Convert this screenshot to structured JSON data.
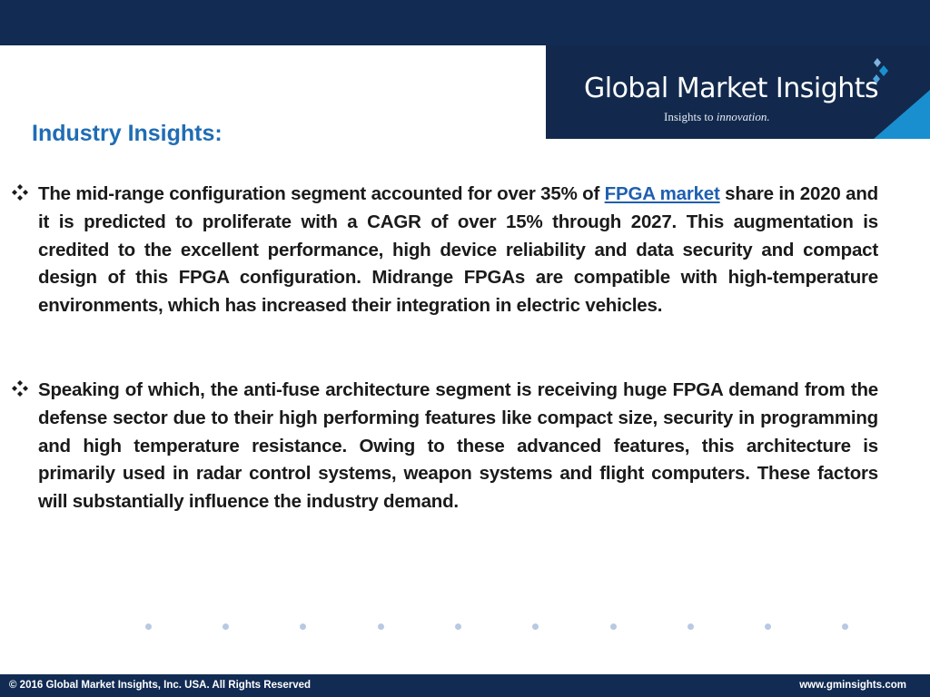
{
  "logo": {
    "name": "Global Market Insights",
    "tagline_prefix": "Insights to ",
    "tagline_emphasis": "innovation."
  },
  "section_title": "Industry Insights:",
  "bullets": [
    {
      "icon": "diamond-bullet-icon",
      "text_before_link": "The mid-range configuration segment accounted for over 35% of ",
      "link_text": "FPGA market",
      "text_after_link": " share in 2020 and it is predicted to proliferate with a CAGR of over 15% through 2027. This augmentation is credited to the excellent performance, high device reliability and data security and compact design of this FPGA configuration. Midrange FPGAs are compatible with high-temperature environments, which has increased their integration in electric vehicles."
    },
    {
      "icon": "diamond-bullet-icon",
      "text": "Speaking of which, the anti-fuse architecture segment is receiving huge FPGA demand from the defense sector due to their high performing features like compact size, security in programming and high temperature resistance. Owing to these advanced features, this architecture is primarily used in radar control systems, weapon systems and flight computers. These factors will substantially influence the industry demand."
    }
  ],
  "footer": {
    "copyright": "© 2016 Global Market Insights, Inc. USA.  All Rights Reserved",
    "website": "www.gminsights.com"
  },
  "colors": {
    "header_bar": "#112b53",
    "title": "#1f6db4",
    "link": "#1f5fb0",
    "accent": "#1a8fd0",
    "dots": "#b8c9e3"
  }
}
